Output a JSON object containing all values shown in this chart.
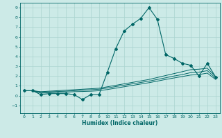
{
  "xlabel": "Humidex (Indice chaleur)",
  "xlim": [
    -0.5,
    23.5
  ],
  "ylim": [
    -1.8,
    9.5
  ],
  "xticks": [
    0,
    1,
    2,
    3,
    4,
    5,
    6,
    7,
    8,
    9,
    10,
    11,
    12,
    13,
    14,
    15,
    16,
    17,
    18,
    19,
    20,
    21,
    22,
    23
  ],
  "yticks": [
    -1,
    0,
    1,
    2,
    3,
    4,
    5,
    6,
    7,
    8,
    9
  ],
  "bg_color": "#cceae7",
  "line_color": "#006666",
  "grid_color": "#aad4d0",
  "line1_x": [
    0,
    1,
    2,
    3,
    4,
    5,
    6,
    7,
    8,
    9,
    10,
    11,
    12,
    13,
    14,
    15,
    16,
    17,
    18,
    19,
    20,
    21,
    22,
    23
  ],
  "line1_y": [
    0.5,
    0.5,
    0.1,
    0.2,
    0.2,
    0.2,
    0.1,
    -0.4,
    0.1,
    0.1,
    2.4,
    4.8,
    6.6,
    7.3,
    7.9,
    9.0,
    7.8,
    4.2,
    3.8,
    3.3,
    3.1,
    2.0,
    3.3,
    1.9
  ],
  "line2_x": [
    0,
    1,
    2,
    3,
    4,
    5,
    6,
    7,
    8,
    9,
    10,
    11,
    12,
    13,
    14,
    15,
    16,
    17,
    18,
    19,
    20,
    21,
    22,
    23
  ],
  "line2_y": [
    0.5,
    0.5,
    0.4,
    0.45,
    0.5,
    0.55,
    0.6,
    0.65,
    0.7,
    0.75,
    0.9,
    1.05,
    1.2,
    1.35,
    1.5,
    1.65,
    1.85,
    2.05,
    2.25,
    2.45,
    2.65,
    2.7,
    2.8,
    1.95
  ],
  "line3_x": [
    0,
    1,
    2,
    3,
    4,
    5,
    6,
    7,
    8,
    9,
    10,
    11,
    12,
    13,
    14,
    15,
    16,
    17,
    18,
    19,
    20,
    21,
    22,
    23
  ],
  "line3_y": [
    0.5,
    0.5,
    0.35,
    0.38,
    0.42,
    0.45,
    0.5,
    0.55,
    0.6,
    0.65,
    0.78,
    0.92,
    1.06,
    1.2,
    1.34,
    1.48,
    1.65,
    1.82,
    2.0,
    2.15,
    2.35,
    2.4,
    2.55,
    1.8
  ],
  "line4_x": [
    0,
    1,
    2,
    3,
    4,
    5,
    6,
    7,
    8,
    9,
    10,
    11,
    12,
    13,
    14,
    15,
    16,
    17,
    18,
    19,
    20,
    21,
    22,
    23
  ],
  "line4_y": [
    0.5,
    0.5,
    0.25,
    0.28,
    0.32,
    0.35,
    0.4,
    0.42,
    0.45,
    0.5,
    0.62,
    0.76,
    0.9,
    1.04,
    1.18,
    1.32,
    1.48,
    1.65,
    1.8,
    1.95,
    2.1,
    2.15,
    2.3,
    1.65
  ]
}
